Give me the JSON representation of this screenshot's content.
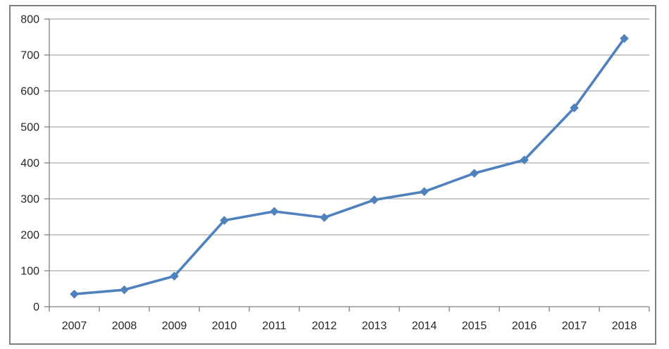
{
  "chart_data": {
    "type": "line",
    "title": "",
    "xlabel": "",
    "ylabel": "",
    "categories": [
      "2007",
      "2008",
      "2009",
      "2010",
      "2011",
      "2012",
      "2013",
      "2014",
      "2015",
      "2016",
      "2017",
      "2018"
    ],
    "series": [
      {
        "name": "",
        "values": [
          35,
          47,
          85,
          240,
          265,
          248,
          297,
          320,
          371,
          408,
          553,
          746
        ]
      }
    ],
    "ylim": [
      0,
      800
    ],
    "ytick_interval": 100,
    "yticks": [
      0,
      100,
      200,
      300,
      400,
      500,
      600,
      700,
      800
    ],
    "ytick_labels": [
      "0",
      "100",
      "200",
      "300",
      "400",
      "500",
      "600",
      "700",
      "800"
    ],
    "grid": "horizontal-major",
    "legend": "none",
    "marker": "diamond",
    "line_color": "#4F81BD",
    "marker_color": "#4F81BD"
  },
  "style": {
    "background_color": "#ffffff",
    "plot_background_color": "#ffffff",
    "gridline_color": "#969696",
    "axis_color": "#808080",
    "tick_color": "#808080",
    "border_color": "#7F7F7F",
    "label_color": "#262626"
  }
}
